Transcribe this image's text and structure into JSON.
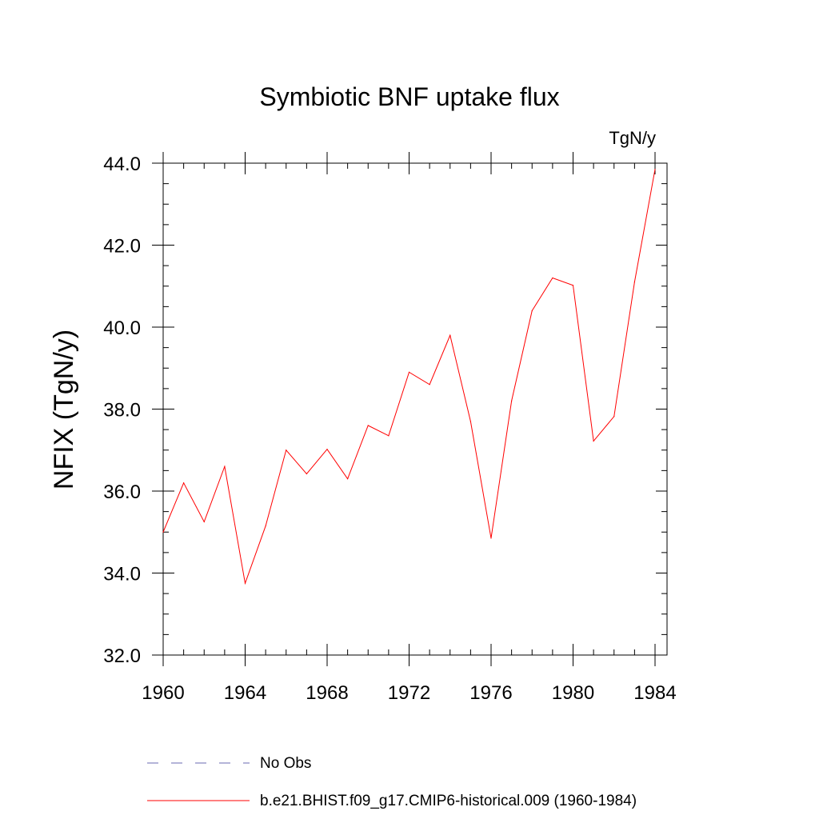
{
  "chart_data": {
    "type": "line",
    "title": "Symbiotic BNF uptake flux",
    "units": "TgN/y",
    "xlabel": "",
    "ylabel": "NFIX  (TgN/y)",
    "xlim": [
      1960,
      1984
    ],
    "ylim": [
      32.0,
      44.0
    ],
    "xticks": [
      1960,
      1964,
      1968,
      1972,
      1976,
      1980,
      1984
    ],
    "yticks": [
      32.0,
      34.0,
      36.0,
      38.0,
      40.0,
      42.0,
      44.0
    ],
    "x_tick_labels": [
      "1960",
      "1964",
      "1968",
      "1972",
      "1976",
      "1980",
      "1984"
    ],
    "y_tick_labels": [
      "32.0",
      "34.0",
      "36.0",
      "38.0",
      "40.0",
      "42.0",
      "44.0"
    ],
    "grid": false,
    "series": [
      {
        "name": "b.e21.BHIST.f09_g17.CMIP6-historical.009 (1960-1984)",
        "color": "#ff0000",
        "style": "solid",
        "x": [
          1960,
          1961,
          1962,
          1963,
          1964,
          1965,
          1966,
          1967,
          1968,
          1969,
          1970,
          1971,
          1972,
          1973,
          1974,
          1975,
          1976,
          1977,
          1978,
          1979,
          1980,
          1981,
          1982,
          1983,
          1984
        ],
        "values": [
          35.0,
          36.2,
          35.25,
          36.6,
          33.75,
          35.15,
          37.0,
          36.42,
          37.02,
          36.3,
          37.6,
          37.35,
          38.9,
          38.6,
          39.8,
          37.7,
          34.85,
          38.2,
          40.4,
          41.2,
          41.02,
          37.22,
          37.82,
          41.1,
          43.85
        ]
      }
    ],
    "legend": {
      "placement": "bottom-center",
      "entries": [
        {
          "label": "No Obs",
          "color": "#6a6ab0",
          "style": "dashed"
        },
        {
          "label": "b.e21.BHIST.f09_g17.CMIP6-historical.009 (1960-1984)",
          "color": "#ff0000",
          "style": "solid"
        }
      ]
    }
  }
}
